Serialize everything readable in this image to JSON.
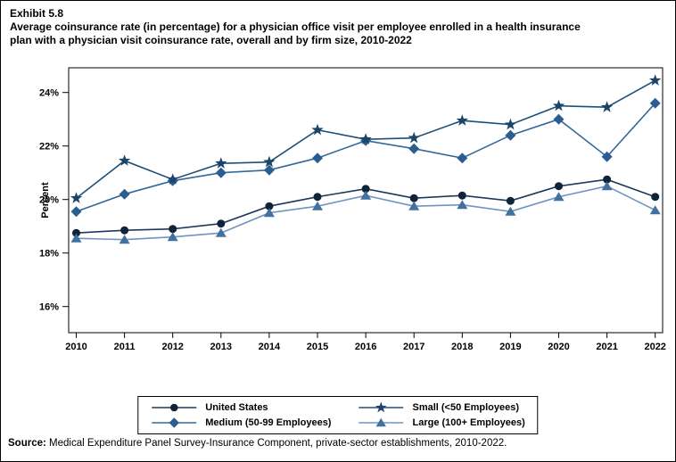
{
  "exhibit": {
    "label": "Exhibit 5.8",
    "title_line1": "Average coinsurance rate (in percentage) for a physician office visit per employee enrolled in a health insurance",
    "title_line2": "plan with a physician visit coinsurance rate, overall and by firm size, 2010-2022"
  },
  "source": {
    "label": "Source:",
    "text": " Medical Expenditure Panel Survey-Insurance Component, private-sector establishments, 2010-2022."
  },
  "chart_data": {
    "type": "line",
    "title": "Average coinsurance rate (in percentage) for a physician office visit per employee enrolled in a health insurance plan with a physician visit coinsurance rate, overall and by firm size, 2010-2022",
    "xlabel": "",
    "ylabel": "Percent",
    "x": [
      2010,
      2011,
      2012,
      2013,
      2014,
      2015,
      2016,
      2017,
      2018,
      2019,
      2020,
      2021,
      2022
    ],
    "ylim": [
      15,
      25
    ],
    "yticks": [
      16,
      18,
      20,
      22,
      24
    ],
    "ytick_labels": [
      "16%",
      "18%",
      "20%",
      "22%",
      "24%"
    ],
    "grid": false,
    "legend_position": "bottom-box",
    "series": [
      {
        "name": "United States",
        "marker": "circle",
        "line_color": "#1a3a5c",
        "marker_color": "#0f2438",
        "values": [
          18.75,
          18.85,
          18.9,
          19.1,
          19.75,
          20.1,
          20.4,
          20.05,
          20.15,
          19.95,
          20.5,
          20.75,
          20.1
        ]
      },
      {
        "name": "Medium (50-99 Employees)",
        "marker": "diamond",
        "line_color": "#35689a",
        "marker_color": "#2b5e90",
        "values": [
          19.55,
          20.2,
          20.7,
          21.0,
          21.1,
          21.55,
          22.2,
          21.9,
          21.55,
          22.4,
          23.0,
          21.6,
          23.6
        ]
      },
      {
        "name": "Small (<50 Employees)",
        "marker": "star",
        "line_color": "#1f4e79",
        "marker_color": "#1b4469",
        "values": [
          20.05,
          21.45,
          20.75,
          21.35,
          21.4,
          22.6,
          22.25,
          22.3,
          22.95,
          22.8,
          23.5,
          23.45,
          24.45
        ]
      },
      {
        "name": "Large (100+ Employees)",
        "marker": "triangle",
        "line_color": "#6d95c0",
        "marker_color": "#42719f",
        "values": [
          18.55,
          18.5,
          18.6,
          18.75,
          19.5,
          19.75,
          20.15,
          19.75,
          19.8,
          19.55,
          20.1,
          20.5,
          19.6
        ]
      }
    ],
    "legend_columns": [
      [
        "United States",
        "Medium (50-99 Employees)"
      ],
      [
        "Small (<50 Employees)",
        "Large (100+ Employees)"
      ]
    ]
  }
}
